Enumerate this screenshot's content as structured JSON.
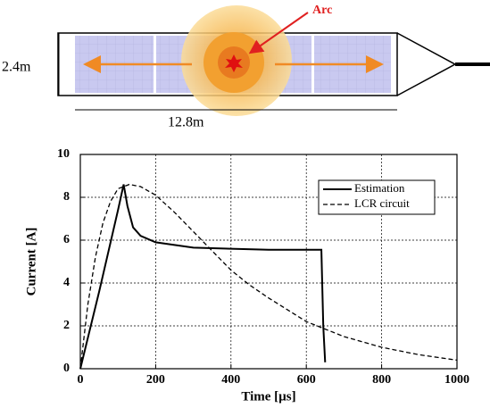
{
  "diagram": {
    "arc_label": "Arc",
    "height_label": "2.4m",
    "length_label": "12.8m"
  },
  "chart_data": {
    "type": "line",
    "x_label": "Time [µs]",
    "y_label": "Current [A]",
    "xlim": [
      0,
      1000
    ],
    "xticks": [
      0,
      200,
      400,
      600,
      800,
      1000
    ],
    "ylim": [
      0,
      10
    ],
    "yticks": [
      0,
      2,
      4,
      6,
      8,
      10
    ],
    "grid": true,
    "legend": "top-right",
    "series": [
      {
        "name": "Estimation",
        "color": "#000000",
        "dash": false,
        "x": [
          0,
          50,
          100,
          115,
          125,
          140,
          160,
          200,
          300,
          400,
          500,
          640,
          645,
          650
        ],
        "values": [
          0,
          3.6,
          7.4,
          8.6,
          7.6,
          6.6,
          6.2,
          5.9,
          5.65,
          5.6,
          5.55,
          5.55,
          2,
          0.3
        ]
      },
      {
        "name": "LCR circuit",
        "color": "#000000",
        "dash": true,
        "x": [
          0,
          20,
          40,
          60,
          80,
          100,
          130,
          160,
          200,
          250,
          300,
          350,
          400,
          450,
          500,
          600,
          700,
          800,
          900,
          1000
        ],
        "values": [
          0,
          3.0,
          5.2,
          6.8,
          7.8,
          8.4,
          8.6,
          8.5,
          8.1,
          7.3,
          6.4,
          5.5,
          4.6,
          3.9,
          3.3,
          2.2,
          1.5,
          1.0,
          0.65,
          0.4
        ]
      }
    ]
  }
}
